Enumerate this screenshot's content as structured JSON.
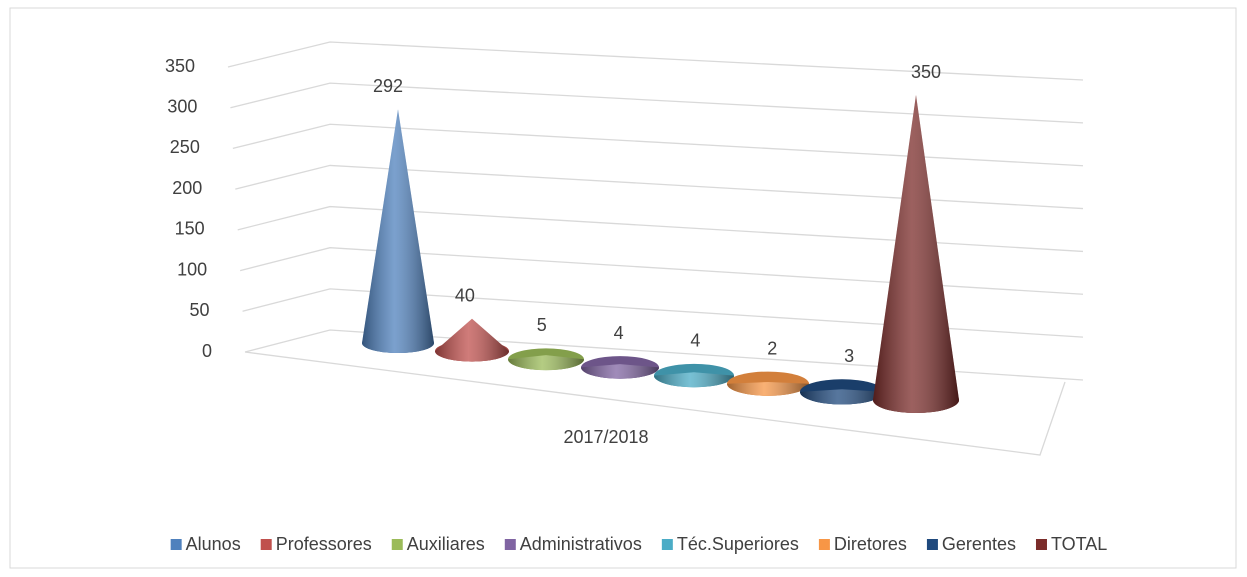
{
  "chart_data": {
    "type": "cone3d",
    "categories": [
      "2017/2018"
    ],
    "series": [
      {
        "name": "Alunos",
        "color": "#4f81bd",
        "values": [
          292
        ]
      },
      {
        "name": "Professores",
        "color": "#c0504d",
        "values": [
          40
        ]
      },
      {
        "name": "Auxiliares",
        "color": "#9bbb59",
        "values": [
          5
        ]
      },
      {
        "name": "Administrativos",
        "color": "#8064a2",
        "values": [
          4
        ]
      },
      {
        "name": "Téc.Superiores",
        "color": "#4bacc6",
        "values": [
          4
        ]
      },
      {
        "name": "Diretores",
        "color": "#f79646",
        "values": [
          2
        ]
      },
      {
        "name": "Gerentes",
        "color": "#1f497d",
        "values": [
          3
        ]
      },
      {
        "name": "TOTAL",
        "color": "#7b2c2a",
        "values": [
          350
        ]
      }
    ],
    "ylim": [
      0,
      350
    ],
    "yticks": [
      0,
      50,
      100,
      150,
      200,
      250,
      300,
      350
    ],
    "grid": true,
    "legend": "bottom"
  }
}
